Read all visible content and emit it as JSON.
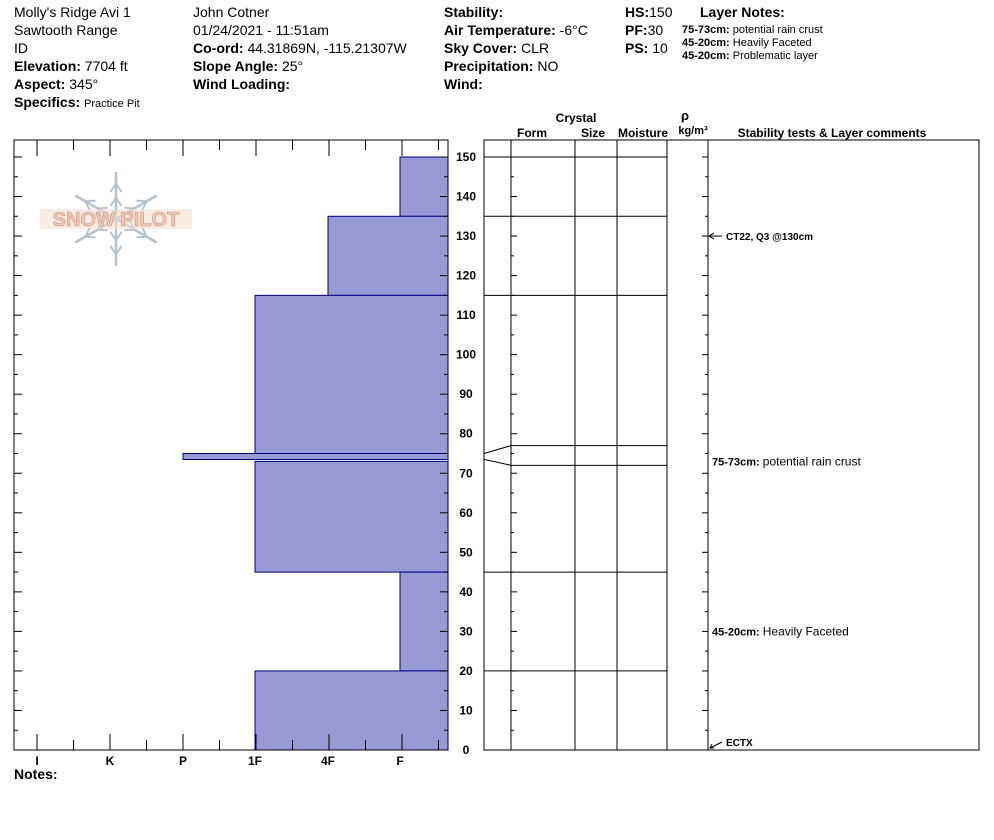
{
  "header": {
    "site": "Molly's Ridge Avi 1",
    "range": "Sawtooth Range",
    "state": "ID",
    "elevation_label": "Elevation:",
    "elevation_value": "7704 ft",
    "aspect_label": "Aspect:",
    "aspect_value": "345°",
    "specifics_label": "Specifics:",
    "specifics_value": "Practice Pit",
    "observer": "John Cotner",
    "datetime": "01/24/2021 - 11:51am",
    "coord_label": "Co-ord:",
    "coord_value": "44.31869N, -115.21307W",
    "slope_label": "Slope Angle:",
    "slope_value": "25°",
    "wind_loading_label": "Wind Loading:",
    "wind_loading_value": "",
    "stability_label": "Stability:",
    "stability_value": "",
    "air_temp_label": "Air Temperature:",
    "air_temp_value": "-6°C",
    "sky_label": "Sky Cover:",
    "sky_value": "CLR",
    "precip_label": "Precipitation:",
    "precip_value": "NO",
    "wind_label": "Wind:",
    "wind_value": "",
    "hs_label": "HS:",
    "hs_value": "150",
    "pf_label": "PF:",
    "pf_value": "30",
    "ps_label": "PS:",
    "ps_value": "10",
    "layer_notes_title": "Layer Notes:",
    "layer_notes": [
      {
        "range": "75-73cm:",
        "text": "potential rain crust"
      },
      {
        "range": "45-20cm:",
        "text": "Heavily Faceted"
      },
      {
        "range": "45-20cm:",
        "text": "Problematic layer"
      }
    ]
  },
  "notes_label": "Notes:",
  "logo_text": "SNOW PILOT",
  "columns": {
    "crystal": "Crystal",
    "form": "Form",
    "size": "Size",
    "moisture": "Moisture",
    "rho": "ρ",
    "density_unit": "kg/m³",
    "comments": "Stability tests & Layer comments"
  },
  "comments": [
    {
      "depth": 130,
      "label": "",
      "text": "CT22, Q3 @130cm",
      "arrow": true
    },
    {
      "depth": 73,
      "label": "75-73cm:",
      "text": "potential rain crust",
      "arrow": false
    },
    {
      "depth": 30,
      "label": "45-20cm:",
      "text": "Heavily Faceted",
      "arrow": false
    },
    {
      "depth": 2,
      "label": "",
      "text": "ECTX",
      "arrow": true
    }
  ],
  "colors": {
    "fill": "#9999d6",
    "stroke": "#000080",
    "logo_text": "#f0c8b4",
    "logo_flake": "#b4c3cf"
  },
  "chart_data": {
    "type": "bar",
    "title": "",
    "orientation": "horizontal",
    "xlabel": "",
    "ylabel": "",
    "hardness_scale": [
      "I",
      "K",
      "P",
      "1F",
      "4F",
      "F"
    ],
    "hardness_scale_order_note": "",
    "ylim": [
      0,
      150
    ],
    "yticks": [
      0,
      10,
      20,
      30,
      40,
      50,
      60,
      70,
      80,
      90,
      100,
      110,
      120,
      130,
      140,
      150
    ],
    "layers": [
      {
        "top": 150,
        "bottom": 135,
        "hardness": "F"
      },
      {
        "top": 135,
        "bottom": 115,
        "hardness": "4F"
      },
      {
        "top": 115,
        "bottom": 75,
        "hardness": "1F"
      },
      {
        "top": 75,
        "bottom": 73,
        "hardness": "P"
      },
      {
        "top": 73,
        "bottom": 45,
        "hardness": "1F"
      },
      {
        "top": 45,
        "bottom": 20,
        "hardness": "F"
      },
      {
        "top": 20,
        "bottom": 0,
        "hardness": "1F"
      }
    ],
    "boundaries": [
      150,
      135,
      115,
      45,
      20
    ],
    "crust_band": {
      "top": 75,
      "bottom": 73,
      "drawn_top": 77,
      "drawn_bottom": 72
    },
    "grid": false
  }
}
